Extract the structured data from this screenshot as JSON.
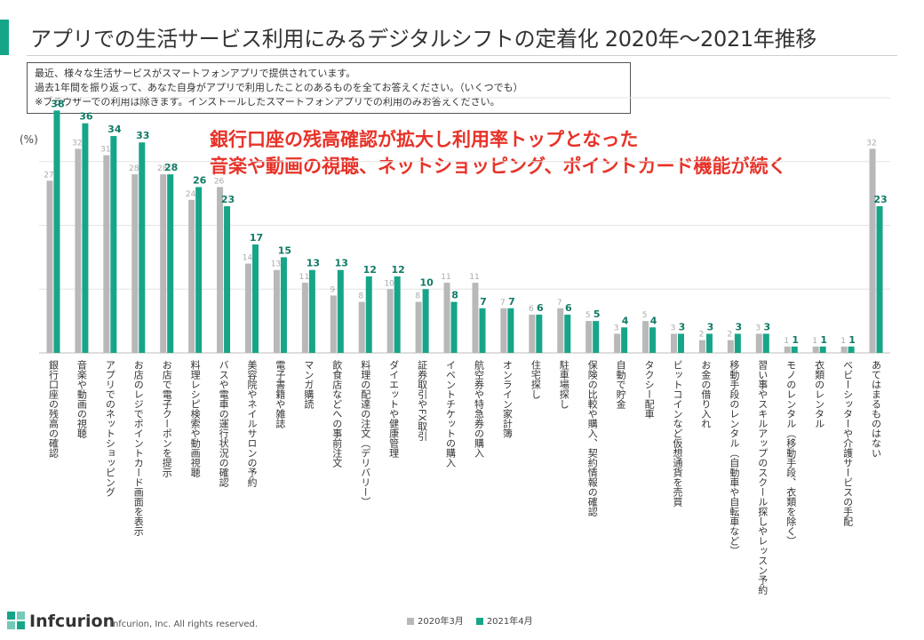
{
  "header": {
    "title": "アプリでの生活サービス利用にみるデジタルシフトの定着化 2020年～2021年推移"
  },
  "question": {
    "lines": [
      "最近、様々な生活サービスがスマートフォンアプリで提供されています。",
      "過去1年間を振り返って、あなた自身がアプリで利用したことのあるものを全てお答えください。（いくつでも）",
      "※ブラウザーでの利用は除きます。インストールしたスマートフォンアプリでの利用のみお答えください。"
    ]
  },
  "headline": {
    "line1": "銀行口座の残高確認が拡大し利用率トップとなった",
    "line2": "音楽や動画の視聴、ネットショッピング、ポイントカード機能が続く"
  },
  "footer": {
    "logo": "Infcurion",
    "copyright": "Infcurion, Inc.  All rights reserved."
  },
  "colors": {
    "accent": "#17a589",
    "series2020": "#b8b8b8",
    "series2021": "#17a589",
    "headline": "#e83228"
  },
  "chart_data": {
    "type": "bar",
    "ylabel": "(%)",
    "ylim": [
      0,
      40
    ],
    "grid": true,
    "legend_position": "bottom",
    "categories": [
      "銀行口座の残高の確認",
      "音楽や動画の視聴",
      "アプリでのネットショッピング",
      "お店のレジでポイントカード画面を表示",
      "お店で電子クーポンを提示",
      "料理レシピ検索や動画視聴",
      "バスや電車の運行状況の確認",
      "美容院やネイルサロンの予約",
      "電子書籍や雑誌",
      "マンガ購読",
      "飲食店などへの事前注文",
      "料理の配達の注文（デリバリー）",
      "ダイエットや健康管理",
      "証券取引やFX取引",
      "イベントチケットの購入",
      "航空券や特急券の購入",
      "オンライン家計簿",
      "住宅探し",
      "駐車場探し",
      "保険の比較や購入、契約情報の確認",
      "自動で貯金",
      "タクシー配車",
      "ビットコインなど仮想通貨を売買",
      "お金の借り入れ",
      "移動手段のレンタル（自動車や自転車など）",
      "習い事やスキルアップのスクール探しやレッスン予約",
      "モノのレンタル（移動手段、衣類を除く）",
      "衣類のレンタル",
      "ベビーシッターや介護サービスの手配",
      "あてはまるものはない"
    ],
    "series": [
      {
        "name": "2020年3月",
        "values": [
          27,
          32,
          31,
          28,
          28,
          24,
          26,
          14,
          13,
          11,
          9,
          8,
          10,
          8,
          11,
          11,
          7,
          6,
          7,
          5,
          3,
          5,
          3,
          2,
          2,
          3,
          1,
          1,
          1,
          32
        ]
      },
      {
        "name": "2021年4月",
        "values": [
          38,
          36,
          34,
          33,
          28,
          26,
          23,
          17,
          15,
          13,
          13,
          12,
          12,
          10,
          8,
          7,
          7,
          6,
          6,
          5,
          4,
          4,
          3,
          3,
          3,
          3,
          1,
          1,
          1,
          23
        ]
      }
    ]
  }
}
